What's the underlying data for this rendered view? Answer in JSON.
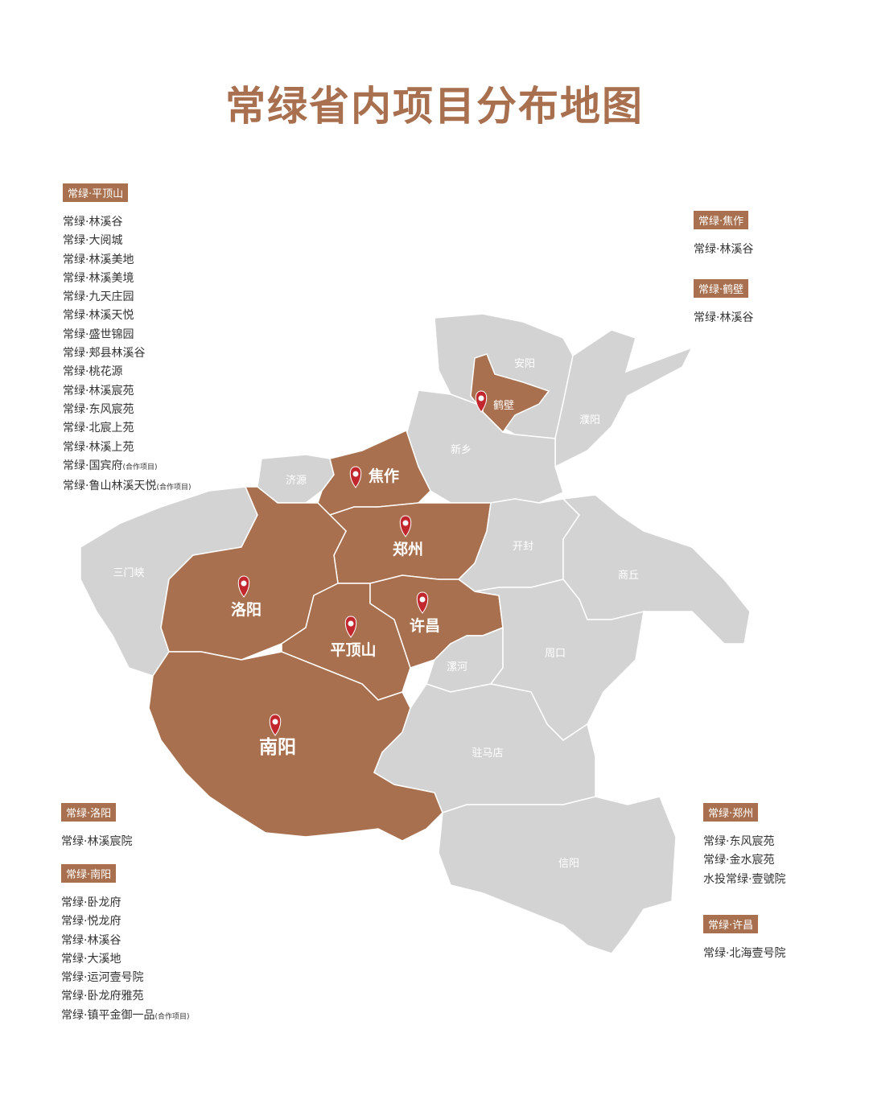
{
  "title": "常绿省内项目分布地图",
  "colors": {
    "highlight": "#a8704f",
    "other": "#d3d3d3",
    "pin": "#c1272d",
    "title": "#a8704f"
  },
  "groups": [
    {
      "tag": "常绿·平顶山",
      "items": [
        {
          "text": "常绿·林溪谷"
        },
        {
          "text": "常绿·大阅城"
        },
        {
          "text": "常绿·林溪美地"
        },
        {
          "text": "常绿·林溪美境"
        },
        {
          "text": "常绿·九天庄园"
        },
        {
          "text": "常绿·林溪天悦"
        },
        {
          "text": "常绿·盛世锦园"
        },
        {
          "text": "常绿·郏县林溪谷"
        },
        {
          "text": "常绿·桃花源"
        },
        {
          "text": "常绿·林溪宸苑"
        },
        {
          "text": "常绿·东风宸苑"
        },
        {
          "text": "常绿·北宸上苑"
        },
        {
          "text": "常绿·林溪上苑"
        },
        {
          "text": "常绿·国宾府",
          "note": "(合作项目)"
        },
        {
          "text": "常绿·鲁山林溪天悦",
          "note": "(合作项目)"
        }
      ]
    },
    {
      "tag": "常绿·焦作",
      "items": [
        {
          "text": "常绿·林溪谷"
        }
      ]
    },
    {
      "tag": "常绿·鹤壁",
      "items": [
        {
          "text": "常绿·林溪谷"
        }
      ]
    },
    {
      "tag": "常绿·洛阳",
      "items": [
        {
          "text": "常绿·林溪宸院"
        }
      ]
    },
    {
      "tag": "常绿·南阳",
      "items": [
        {
          "text": "常绿·卧龙府"
        },
        {
          "text": "常绿·悦龙府"
        },
        {
          "text": "常绿·林溪谷"
        },
        {
          "text": "常绿·大溪地"
        },
        {
          "text": "常绿·运河壹号院"
        },
        {
          "text": "常绿·卧龙府雅苑"
        },
        {
          "text": "常绿·镇平金御一品",
          "note": "(合作项目)"
        }
      ]
    },
    {
      "tag": "常绿·郑州",
      "items": [
        {
          "text": "常绿·东风宸苑"
        },
        {
          "text": "常绿·金水宸苑"
        },
        {
          "text": "水投常绿·壹號院"
        }
      ]
    },
    {
      "tag": "常绿·许昌",
      "items": [
        {
          "text": "常绿·北海壹号院"
        }
      ]
    }
  ],
  "regions": [
    {
      "name": "安阳",
      "highlighted": false
    },
    {
      "name": "濮阳",
      "highlighted": false
    },
    {
      "name": "鹤壁",
      "highlighted": true,
      "pin": true
    },
    {
      "name": "新乡",
      "highlighted": false
    },
    {
      "name": "济源",
      "highlighted": false
    },
    {
      "name": "焦作",
      "highlighted": true,
      "pin": true
    },
    {
      "name": "郑州",
      "highlighted": true,
      "pin": true
    },
    {
      "name": "开封",
      "highlighted": false
    },
    {
      "name": "商丘",
      "highlighted": false
    },
    {
      "name": "三门峡",
      "highlighted": false
    },
    {
      "name": "洛阳",
      "highlighted": true,
      "pin": true
    },
    {
      "name": "平顶山",
      "highlighted": true,
      "pin": true
    },
    {
      "name": "许昌",
      "highlighted": true,
      "pin": true
    },
    {
      "name": "漯河",
      "highlighted": false
    },
    {
      "name": "周口",
      "highlighted": false
    },
    {
      "name": "南阳",
      "highlighted": true,
      "pin": true
    },
    {
      "name": "驻马店",
      "highlighted": false
    },
    {
      "name": "信阳",
      "highlighted": false
    }
  ]
}
